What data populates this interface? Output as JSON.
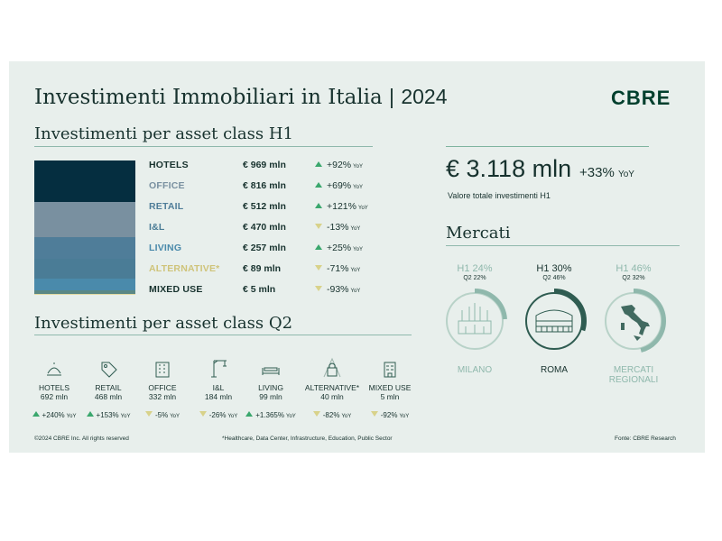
{
  "header": {
    "title": "Investimenti Immobiliari in Italia",
    "separator": "|",
    "year": "2024",
    "logo": "CBRE"
  },
  "h1_section": {
    "title": "Investimenti per asset class H1"
  },
  "q2_section": {
    "title": "Investimenti per asset class Q2"
  },
  "total": {
    "value": "€ 3.118 mln",
    "change": "+33%",
    "change_unit": "YoY",
    "label": "Valore totale investimenti H1"
  },
  "markets": {
    "title": "Mercati",
    "items": [
      {
        "h1": "H1 24%",
        "q2": "Q2 22%",
        "name": "MILANO",
        "h1_share": 0.24,
        "q2_share": 0.22,
        "icon": "duomo-icon",
        "faded": true
      },
      {
        "h1": "H1 30%",
        "q2": "Q2 46%",
        "name": "ROMA",
        "h1_share": 0.3,
        "q2_share": 0.46,
        "icon": "colosseum-icon",
        "faded": false
      },
      {
        "h1": "H1 46%",
        "q2": "Q2 32%",
        "name": "MERCATI REGIONALI",
        "h1_share": 0.46,
        "q2_share": 0.32,
        "icon": "italy-map-icon",
        "faded": true
      }
    ]
  },
  "chart_data": [
    {
      "type": "bar",
      "title": "Investimenti per asset class H1",
      "categories": [
        "HOTELS",
        "OFFICE",
        "RETAIL",
        "I&L",
        "LIVING",
        "ALTERNATIVE*",
        "MIXED USE"
      ],
      "values": [
        969,
        816,
        512,
        470,
        257,
        89,
        5
      ],
      "value_labels": [
        "€ 969 mln",
        "€ 816 mln",
        "€ 512 mln",
        "€ 470 mln",
        "€ 257 mln",
        "€ 89 mln",
        "€ 5 mln"
      ],
      "changes": [
        "+92%",
        "+69%",
        "+121%",
        "-13%",
        "+25%",
        "-71%",
        "-93%"
      ],
      "directions": [
        "up",
        "up",
        "up",
        "down",
        "up",
        "down",
        "down"
      ],
      "yoy_label": "YoY",
      "colors": [
        "#052e40",
        "#7990a0",
        "#4f7d99",
        "#4a7c96",
        "#4a8aab",
        "#5b8885",
        "#e3dca5"
      ],
      "label_colors": [
        "#17322e",
        "#7990a0",
        "#4f7d99",
        "#4a7c96",
        "#4a8aab",
        "#cfc47a",
        "#17322e"
      ]
    },
    {
      "type": "table",
      "title": "Investimenti per asset class Q2",
      "categories": [
        "HOTELS",
        "RETAIL",
        "OFFICE",
        "I&L",
        "LIVING",
        "ALTERNATIVE*",
        "MIXED USE"
      ],
      "values": [
        692,
        468,
        332,
        184,
        99,
        40,
        5
      ],
      "value_labels": [
        "692 mln",
        "468 mln",
        "332 mln",
        "184 mln",
        "99 mln",
        "40 mln",
        "5 mln"
      ],
      "changes": [
        "+240%",
        "+153%",
        "-5%",
        "-26%",
        "+1.365%",
        "-82%",
        "-92%"
      ],
      "directions": [
        "up",
        "up",
        "down",
        "down",
        "up",
        "down",
        "down"
      ],
      "yoy_label": "YoY",
      "icons": [
        "bell-icon",
        "tag-icon",
        "building-icon",
        "crane-icon",
        "bed-icon",
        "padlock-icon",
        "mixed-building-icon"
      ]
    }
  ],
  "footer": {
    "copyright": "©2024 CBRE Inc. All rights reserved",
    "note": "*Healthcare, Data Center, Infrastructure, Education, Public Sector",
    "source": "Fonte: CBRE Research"
  },
  "colors": {
    "accent": "#003f2d",
    "up": "#3aa76d",
    "down": "#d8d28a",
    "ring_track": "#c5d8d1",
    "ring_fill": "#2f5c51"
  }
}
